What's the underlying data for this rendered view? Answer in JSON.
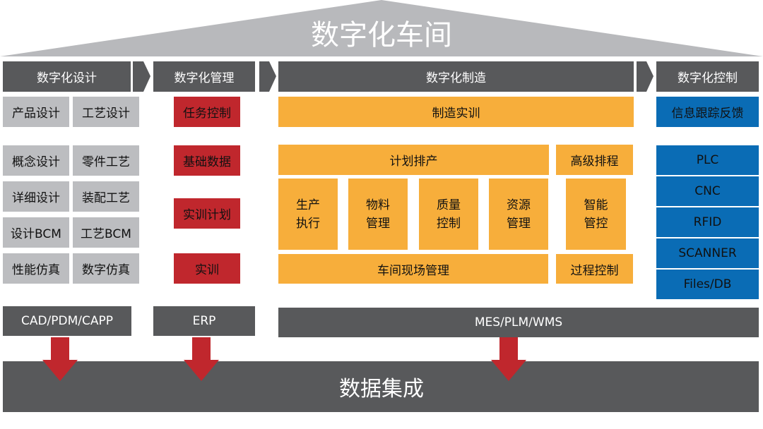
{
  "title": "数字化车间",
  "colors": {
    "header": "#58595b",
    "design": "#bcbdc0",
    "management": "#c0272d",
    "manufacturing": "#f7ae3b",
    "control": "#0a6cb5",
    "roof": "#b8b9bc"
  },
  "columns": {
    "design": {
      "header": "数字化设计",
      "items": [
        "产品设计",
        "工艺设计",
        "概念设计",
        "零件工艺",
        "详细设计",
        "装配工艺",
        "设计BCM",
        "工艺BCM",
        "性能仿真",
        "数字仿真"
      ],
      "system": "CAD/PDM/CAPP"
    },
    "management": {
      "header": "数字化管理",
      "items": [
        "任务控制",
        "基础数据",
        "实训计划",
        "实训"
      ],
      "system": "ERP"
    },
    "manufacturing": {
      "header": "数字化制造",
      "top": "制造实训",
      "plan": "计划排产",
      "advanced": "高级排程",
      "modules": [
        "生产\n执行",
        "物料\n管理",
        "质量\n控制",
        "资源\n管理"
      ],
      "smart": "智能\n管控",
      "shopfloor": "车间现场管理",
      "process": "过程控制",
      "system": "MES/PLM/WMS"
    },
    "control": {
      "header": "数字化控制",
      "top": "信息跟踪反馈",
      "items": [
        "PLC",
        "CNC",
        "RFID",
        "SCANNER",
        "Files/DB"
      ]
    }
  },
  "footer": "数据集成"
}
